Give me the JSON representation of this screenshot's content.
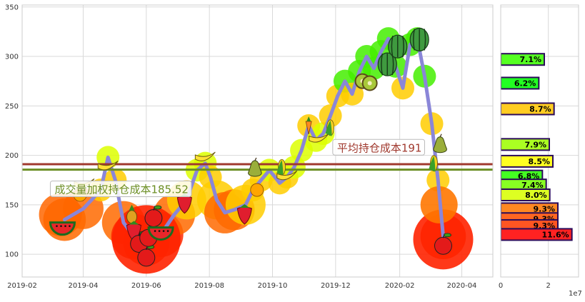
{
  "chart_data": [
    {
      "type": "line",
      "title": "",
      "xlabel": "",
      "ylabel": "",
      "x_ticks": [
        "2019-02",
        "2019-04",
        "2019-06",
        "2019-08",
        "2019-10",
        "2019-12",
        "2020-02",
        "2020-04"
      ],
      "y_ticks": [
        100,
        150,
        200,
        250,
        300,
        350
      ],
      "xlim": [
        "2019-02-01",
        "2020-05-01"
      ],
      "ylim": [
        77,
        352
      ],
      "grid": true,
      "series": [
        {
          "values": [
            {
              "x": "2019-03-14",
              "y": 135
            },
            {
              "x": "2019-04-01",
              "y": 146
            },
            {
              "x": "2019-04-18",
              "y": 165
            },
            {
              "x": "2019-04-25",
              "y": 198
            },
            {
              "x": "2019-05-02",
              "y": 175
            },
            {
              "x": "2019-05-10",
              "y": 132
            },
            {
              "x": "2019-05-20",
              "y": 118
            },
            {
              "x": "2019-06-01",
              "y": 112
            },
            {
              "x": "2019-06-15",
              "y": 120
            },
            {
              "x": "2019-06-28",
              "y": 140
            },
            {
              "x": "2019-07-10",
              "y": 155
            },
            {
              "x": "2019-07-20",
              "y": 185
            },
            {
              "x": "2019-07-28",
              "y": 192
            },
            {
              "x": "2019-08-02",
              "y": 178
            },
            {
              "x": "2019-08-08",
              "y": 155
            },
            {
              "x": "2019-08-16",
              "y": 142
            },
            {
              "x": "2019-08-25",
              "y": 145
            },
            {
              "x": "2019-09-05",
              "y": 150
            },
            {
              "x": "2019-09-12",
              "y": 165
            },
            {
              "x": "2019-09-20",
              "y": 175
            },
            {
              "x": "2019-09-28",
              "y": 185
            },
            {
              "x": "2019-10-08",
              "y": 172
            },
            {
              "x": "2019-10-15",
              "y": 178
            },
            {
              "x": "2019-10-22",
              "y": 188
            },
            {
              "x": "2019-10-29",
              "y": 205
            },
            {
              "x": "2019-11-05",
              "y": 230
            },
            {
              "x": "2019-11-12",
              "y": 215
            },
            {
              "x": "2019-11-19",
              "y": 222
            },
            {
              "x": "2019-11-26",
              "y": 240
            },
            {
              "x": "2019-12-03",
              "y": 260
            },
            {
              "x": "2019-12-10",
              "y": 275
            },
            {
              "x": "2019-12-17",
              "y": 262
            },
            {
              "x": "2019-12-24",
              "y": 285
            },
            {
              "x": "2019-12-31",
              "y": 300
            },
            {
              "x": "2020-01-07",
              "y": 288
            },
            {
              "x": "2020-01-14",
              "y": 305
            },
            {
              "x": "2020-01-21",
              "y": 318
            },
            {
              "x": "2020-01-28",
              "y": 290
            },
            {
              "x": "2020-02-04",
              "y": 268
            },
            {
              "x": "2020-02-11",
              "y": 312
            },
            {
              "x": "2020-02-18",
              "y": 318
            },
            {
              "x": "2020-02-25",
              "y": 280
            },
            {
              "x": "2020-03-03",
              "y": 232
            },
            {
              "x": "2020-03-09",
              "y": 175
            },
            {
              "x": "2020-03-14",
              "y": 118
            }
          ]
        }
      ],
      "fruit_markers": [
        {
          "x": "2019-03-12",
          "y": 135,
          "icon": "watermelon-slice-icon"
        },
        {
          "x": "2019-03-29",
          "y": 160,
          "icon": "orange-icon"
        },
        {
          "x": "2019-04-02",
          "y": 172,
          "icon": "banana-icon"
        },
        {
          "x": "2019-04-25",
          "y": 190,
          "icon": "banana-icon"
        },
        {
          "x": "2019-05-18",
          "y": 140,
          "icon": "pineapple-icon"
        },
        {
          "x": "2019-05-20",
          "y": 125,
          "icon": "strawberry-icon"
        },
        {
          "x": "2019-05-25",
          "y": 112,
          "icon": "apple-icon"
        },
        {
          "x": "2019-06-01",
          "y": 98,
          "icon": "apple-icon"
        },
        {
          "x": "2019-06-03",
          "y": 118,
          "icon": "apple-icon"
        },
        {
          "x": "2019-06-08",
          "y": 138,
          "icon": "apple-icon"
        },
        {
          "x": "2019-06-15",
          "y": 130,
          "icon": "watermelon-slice-icon"
        },
        {
          "x": "2019-07-08",
          "y": 153,
          "icon": "strawberry-icon"
        },
        {
          "x": "2019-07-28",
          "y": 199,
          "icon": "banana-icon"
        },
        {
          "x": "2019-09-04",
          "y": 142,
          "icon": "strawberry-icon"
        },
        {
          "x": "2019-09-14",
          "y": 186,
          "icon": "pear-icon"
        },
        {
          "x": "2019-09-16",
          "y": 165,
          "icon": "orange-icon"
        },
        {
          "x": "2019-10-10",
          "y": 188,
          "icon": "corn-icon"
        },
        {
          "x": "2019-10-15",
          "y": 180,
          "icon": "banana-icon"
        },
        {
          "x": "2019-11-05",
          "y": 230,
          "icon": "carrot-icon"
        },
        {
          "x": "2019-11-15",
          "y": 218,
          "icon": "banana-icon"
        },
        {
          "x": "2019-11-26",
          "y": 228,
          "icon": "corn-icon"
        },
        {
          "x": "2019-12-27",
          "y": 275,
          "icon": "kiwi-icon"
        },
        {
          "x": "2020-01-03",
          "y": 273,
          "icon": "kiwi-icon"
        },
        {
          "x": "2020-01-20",
          "y": 292,
          "icon": "watermelon-icon"
        },
        {
          "x": "2020-01-30",
          "y": 310,
          "icon": "watermelon-icon"
        },
        {
          "x": "2020-02-20",
          "y": 317,
          "icon": "watermelon-icon"
        },
        {
          "x": "2020-03-05",
          "y": 192,
          "icon": "corn-icon"
        },
        {
          "x": "2020-03-11",
          "y": 210,
          "icon": "pear-icon"
        },
        {
          "x": "2020-03-14",
          "y": 110,
          "icon": "apple-icon"
        }
      ],
      "reference_lines": [
        {
          "label": "平均持仓成本191",
          "y": 191,
          "color": "#a0392e"
        },
        {
          "label": "成交量加权持仓成本185.52",
          "y": 185.52,
          "color": "#6b8e23"
        }
      ],
      "annotations": [
        {
          "text": "平均持仓成本191",
          "x": "2019-12-01",
          "y": 206,
          "color": "#a0392e"
        },
        {
          "text": "成交量加权持仓成本185.52",
          "x": "2019-03-03",
          "y": 164,
          "color": "#6b8e23"
        }
      ]
    },
    {
      "type": "bar",
      "orientation": "horizontal",
      "x_ticks": [
        "0",
        "2"
      ],
      "x_offset_label": "1e7",
      "xlim": [
        0,
        3.27
      ],
      "ylim": [
        77,
        352
      ],
      "bars": [
        {
          "y": 297,
          "value": 1.83,
          "label": "7.1%",
          "color": "#55ff22"
        },
        {
          "y": 273,
          "value": 1.6,
          "label": "6.2%",
          "color": "#22ff22"
        },
        {
          "y": 247,
          "value": 2.24,
          "label": "8.7%",
          "color": "#ffcc22"
        },
        {
          "y": 211,
          "value": 2.04,
          "label": "7.9%",
          "color": "#aaff22"
        },
        {
          "y": 194,
          "value": 2.19,
          "label": "8.5%",
          "color": "#ffff22"
        },
        {
          "y": 179,
          "value": 1.75,
          "label": "6.8%",
          "color": "#44ff22"
        },
        {
          "y": 170,
          "value": 1.91,
          "label": "7.4%",
          "color": "#88ff22"
        },
        {
          "y": 160,
          "value": 2.06,
          "label": "8.0%",
          "color": "#ddff22"
        },
        {
          "y": 146,
          "value": 2.4,
          "label": "9.3%",
          "color": "#ff8822"
        },
        {
          "y": 136,
          "value": 2.4,
          "label": "9.3%",
          "color": "#ff6622"
        },
        {
          "y": 129,
          "value": 2.4,
          "label": "9.3%",
          "color": "#ff5522"
        },
        {
          "y": 120,
          "value": 2.99,
          "label": "11.6%",
          "color": "#ff2222"
        }
      ]
    }
  ]
}
